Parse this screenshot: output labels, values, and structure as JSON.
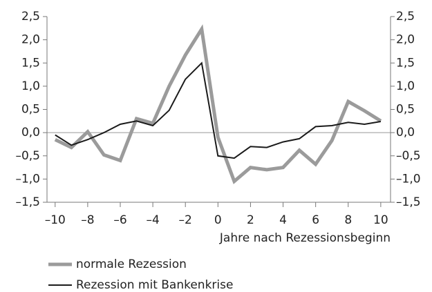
{
  "chart_data": {
    "type": "line",
    "xlabel": "Jahre nach Rezessionsbeginn",
    "x": [
      -10,
      -9,
      -8,
      -7,
      -6,
      -5,
      -4,
      -3,
      -2,
      -1,
      0,
      1,
      2,
      3,
      4,
      5,
      6,
      7,
      8,
      9,
      10
    ],
    "series": [
      {
        "name": "normale Rezession",
        "color": "#9b9b9b",
        "values": [
          -0.15,
          -0.32,
          0.02,
          -0.48,
          -0.6,
          0.3,
          0.2,
          1.0,
          1.67,
          2.23,
          -0.1,
          -1.05,
          -0.75,
          -0.8,
          -0.75,
          -0.38,
          -0.68,
          -0.17,
          0.67,
          0.47,
          0.25
        ]
      },
      {
        "name": "Rezession mit Bankenkrise",
        "color": "#1a1a1a",
        "values": [
          -0.05,
          -0.27,
          -0.15,
          0.0,
          0.18,
          0.25,
          0.15,
          0.48,
          1.15,
          1.5,
          -0.5,
          -0.55,
          -0.3,
          -0.32,
          -0.2,
          -0.13,
          0.13,
          0.15,
          0.22,
          0.18,
          0.24
        ]
      }
    ],
    "xlim": [
      -10.5,
      10.6
    ],
    "xticks": [
      {
        "value": -10,
        "label": "–10"
      },
      {
        "value": -8,
        "label": "–8"
      },
      {
        "value": -6,
        "label": "–6"
      },
      {
        "value": -4,
        "label": "–4"
      },
      {
        "value": -2,
        "label": "–2"
      },
      0,
      2,
      4,
      6,
      8,
      10
    ],
    "ylim": [
      -1.5,
      2.5
    ],
    "yticks": [
      {
        "value": -1.5,
        "label": "–1,5"
      },
      {
        "value": -1,
        "label": "–1,0"
      },
      {
        "value": -0.5,
        "label": "–0,5"
      },
      {
        "value": 0,
        "label": "0,0"
      },
      {
        "value": 0.5,
        "label": "0,5"
      },
      {
        "value": 1,
        "label": "1,0"
      },
      {
        "value": 1.5,
        "label": "1,5"
      },
      {
        "value": 2,
        "label": "2,0"
      },
      {
        "value": 2.5,
        "label": "2,5"
      }
    ],
    "y2lim": [
      -1.5,
      2.5
    ],
    "y2ticks": [
      {
        "value": -1.5,
        "label": "–1,5"
      },
      {
        "value": -1,
        "label": "–1,0"
      },
      {
        "value": -0.5,
        "label": "–0,5"
      },
      {
        "value": 0,
        "label": "0,0"
      },
      {
        "value": 0.5,
        "label": "0,5"
      },
      {
        "value": 1,
        "label": "1,0"
      },
      {
        "value": 1.5,
        "label": "1,5"
      },
      {
        "value": 2,
        "label": "2,0"
      },
      {
        "value": 2.5,
        "label": "2,5"
      }
    ],
    "zero_line": true,
    "legend": "bottom-left"
  }
}
